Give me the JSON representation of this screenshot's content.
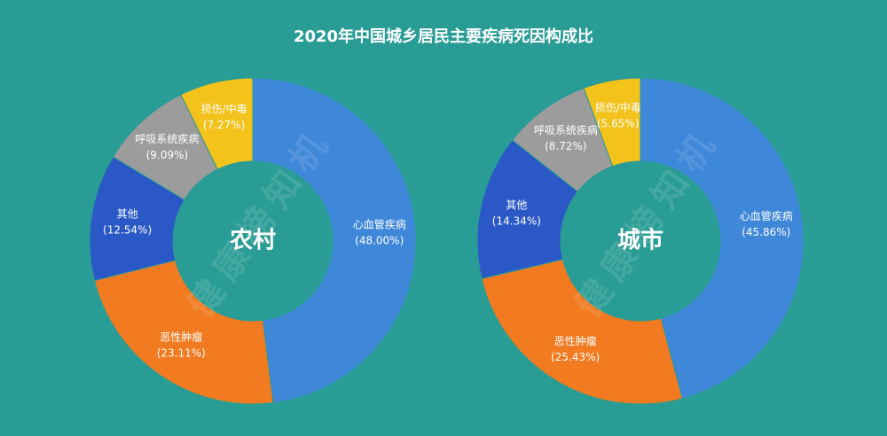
{
  "title": "2020年中国城乡居民主要疾病死因构成比",
  "watermark": "健康榜知机",
  "chart_data": [
    {
      "type": "pie",
      "title": "农村",
      "categories": [
        "心血管疾病",
        "恶性肿瘤",
        "其他",
        "呼吸系统疾病",
        "损伤/中毒"
      ],
      "values": [
        48.0,
        23.11,
        12.54,
        9.09,
        7.27
      ],
      "value_labels": [
        "(48.00%)",
        "(23.11%)",
        "(12.54%)",
        "(9.09%)",
        "(7.27%)"
      ],
      "colors": [
        "#3f87d9",
        "#f27a20",
        "#2a58c6",
        "#9c9c9c",
        "#f3c21b"
      ]
    },
    {
      "type": "pie",
      "title": "城市",
      "categories": [
        "心血管疾病",
        "恶性肿瘤",
        "其他",
        "呼吸系统疾病",
        "损伤/中毒"
      ],
      "values": [
        45.86,
        25.43,
        14.34,
        8.72,
        5.65
      ],
      "value_labels": [
        "(45.86%)",
        "(25.43%)",
        "(14.34%)",
        "(8.72%)",
        "(5.65%)"
      ],
      "colors": [
        "#3f87d9",
        "#f27a20",
        "#2a58c6",
        "#9c9c9c",
        "#f3c21b"
      ]
    }
  ]
}
